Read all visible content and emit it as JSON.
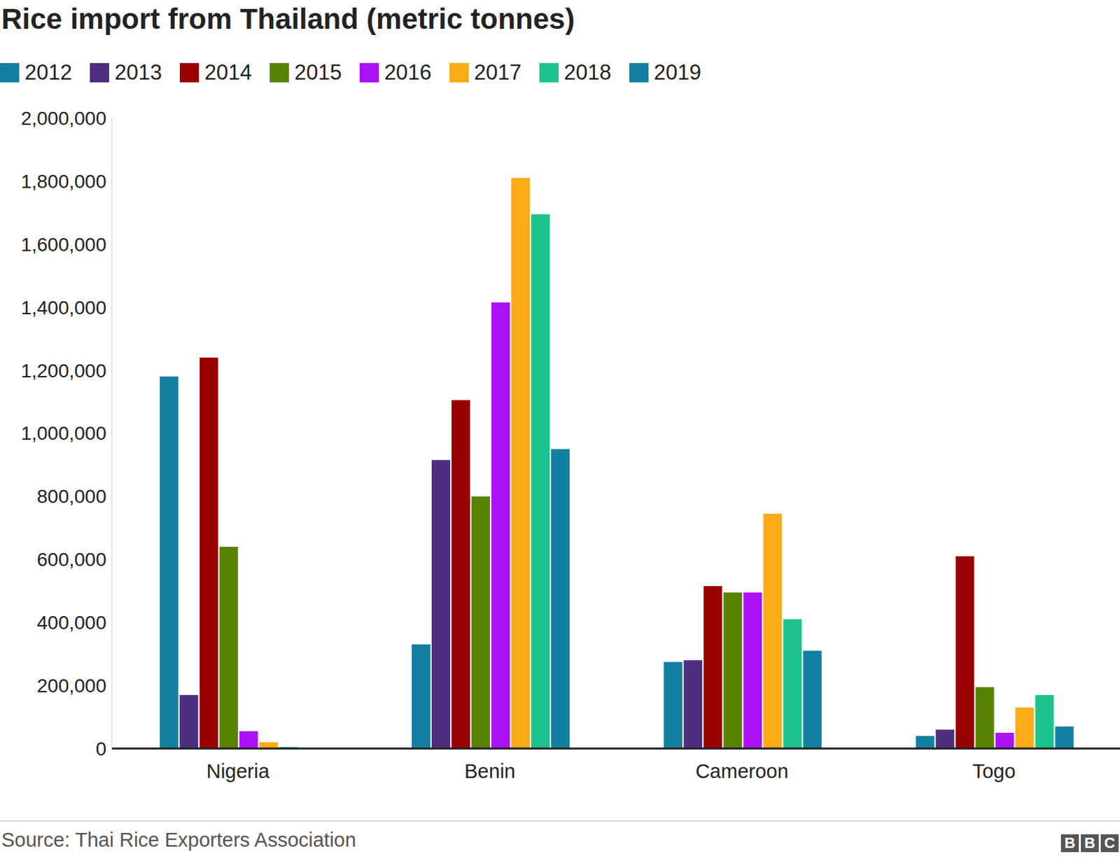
{
  "chart_data": {
    "type": "bar",
    "title": "Rice import from Thailand (metric tonnes)",
    "source": "Source: Thai Rice Exporters Association",
    "logo": "BBC",
    "categories": [
      "Nigeria",
      "Benin",
      "Cameroon",
      "Togo"
    ],
    "series": [
      {
        "name": "2012",
        "color": "#1380a1",
        "values": [
          1180000,
          330000,
          275000,
          40000
        ]
      },
      {
        "name": "2013",
        "color": "#4f2d7f",
        "values": [
          170000,
          915000,
          280000,
          60000
        ]
      },
      {
        "name": "2014",
        "color": "#990000",
        "values": [
          1240000,
          1105000,
          515000,
          610000
        ]
      },
      {
        "name": "2015",
        "color": "#588300",
        "values": [
          640000,
          800000,
          495000,
          195000
        ]
      },
      {
        "name": "2016",
        "color": "#aa11f5",
        "values": [
          55000,
          1415000,
          495000,
          50000
        ]
      },
      {
        "name": "2017",
        "color": "#faab18",
        "values": [
          20000,
          1810000,
          745000,
          130000
        ]
      },
      {
        "name": "2018",
        "color": "#1ec28f",
        "values": [
          5000,
          1695000,
          410000,
          170000
        ]
      },
      {
        "name": "2019",
        "color": "#1380a1",
        "values": [
          null,
          950000,
          310000,
          70000
        ]
      }
    ],
    "ylim": [
      0,
      2000000
    ],
    "yticks": [
      0,
      {
        "value": 200000,
        "label": "200,000"
      },
      {
        "value": 400000,
        "label": "400,000"
      },
      {
        "value": 600000,
        "label": "600,000"
      },
      {
        "value": 800000,
        "label": "800,000"
      },
      {
        "value": 1000000,
        "label": "1,000,000"
      },
      {
        "value": 1200000,
        "label": "1,200,000"
      },
      {
        "value": 1400000,
        "label": "1,400,000"
      },
      {
        "value": 1600000,
        "label": "1,600,000"
      },
      {
        "value": 1800000,
        "label": "1,800,000"
      },
      {
        "value": 2000000,
        "label": "2,000,000"
      }
    ],
    "grid": false,
    "legend": "top"
  }
}
